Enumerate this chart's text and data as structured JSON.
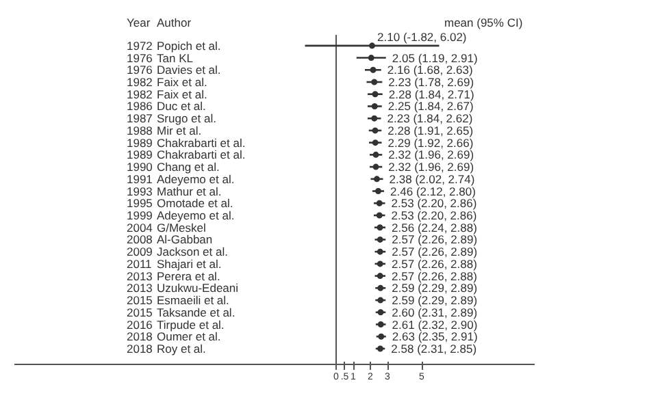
{
  "chart_data": {
    "type": "scatter",
    "orientation": "horizontal",
    "ylabel": "Author",
    "categories": [
      "Popich et al.",
      "Tan KL",
      "Davies et al.",
      "Faix et al.",
      "Faix et al.",
      "Duc et al.",
      "Srugo et al.",
      "Mir et al.",
      "Chakrabarti et al.",
      "Chakrabarti et al.",
      "Chang et al.",
      "Adeyemo et al.",
      "Mathur et al.",
      "Omotade et al.",
      "Adeyemo et al.",
      "G/Meskel",
      "Al-Gabban",
      "Jackson et al.",
      "Shajari et al.",
      "Perera et al.",
      "Uzukwu-Edeani",
      "Esmaeili et al.",
      "Taksande et al.",
      "Tirpude et al.",
      "Oumer et al.",
      "Roy et al."
    ],
    "values": [
      2.1,
      2.05,
      2.16,
      2.23,
      2.28,
      2.25,
      2.23,
      2.28,
      2.29,
      2.32,
      2.32,
      2.38,
      2.46,
      2.53,
      2.53,
      2.56,
      2.57,
      2.57,
      2.57,
      2.57,
      2.59,
      2.59,
      2.6,
      2.61,
      2.63,
      2.58
    ],
    "errors": [
      [
        -1.82,
        6.02
      ],
      [
        1.19,
        2.91
      ],
      [
        1.68,
        2.63
      ],
      [
        1.78,
        2.69
      ],
      [
        1.84,
        2.71
      ],
      [
        1.84,
        2.67
      ],
      [
        1.84,
        2.62
      ],
      [
        1.91,
        2.65
      ],
      [
        1.92,
        2.66
      ],
      [
        1.96,
        2.69
      ],
      [
        1.96,
        2.69
      ],
      [
        2.02,
        2.74
      ],
      [
        2.12,
        2.8
      ],
      [
        2.2,
        2.86
      ],
      [
        2.2,
        2.86
      ],
      [
        2.24,
        2.88
      ],
      [
        2.26,
        2.89
      ],
      [
        2.26,
        2.89
      ],
      [
        2.26,
        2.88
      ],
      [
        2.26,
        2.88
      ],
      [
        2.29,
        2.89
      ],
      [
        2.29,
        2.89
      ],
      [
        2.31,
        2.89
      ],
      [
        2.32,
        2.9
      ],
      [
        2.35,
        2.91
      ],
      [
        2.31,
        2.85
      ]
    ],
    "value_labels": [
      "2.10 (-1.82, 6.02)",
      "2.05 (1.19, 2.91)",
      "2.16 (1.68, 2.63)",
      "2.23 (1.78, 2.69)",
      "2.28 (1.84, 2.71)",
      "2.25 (1.84, 2.67)",
      "2.23 (1.84, 2.62)",
      "2.28 (1.91, 2.65)",
      "2.29 (1.92, 2.66)",
      "2.32 (1.96, 2.69)",
      "2.32 (1.96, 2.69)",
      "2.38 (2.02, 2.74)",
      "2.46 (2.12, 2.80)",
      "2.53 (2.20, 2.86)",
      "2.53 (2.20, 2.86)",
      "2.56 (2.24, 2.88)",
      "2.57 (2.26, 2.89)",
      "2.57 (2.26, 2.89)",
      "2.57 (2.26, 2.88)",
      "2.57 (2.26, 2.88)",
      "2.59 (2.29, 2.89)",
      "2.59 (2.29, 2.89)",
      "2.60 (2.31, 2.89)",
      "2.61 (2.32, 2.90)",
      "2.63 (2.35, 2.91)",
      "2.58 (2.31, 2.85)"
    ],
    "color": "#333333",
    "marker": "circle",
    "xlim": [
      -18.8,
      11.6
    ],
    "xticks": [
      {
        "value": 0,
        "label": "0"
      },
      {
        "value": 0.5,
        "label": ".5"
      },
      {
        "value": 1,
        "label": "1"
      },
      {
        "value": 2,
        "label": "2"
      },
      {
        "value": 3,
        "label": "3"
      },
      {
        "value": 5,
        "label": "5"
      }
    ],
    "ref_lines": [
      {
        "axis": "x",
        "value": 0,
        "color": "#555555"
      }
    ],
    "annotations": [
      "Year",
      "mean (95% CI)",
      "1972",
      "1976",
      "1976",
      "1982",
      "1982",
      "1986",
      "1987",
      "1988",
      "1989",
      "1989",
      "1990",
      "1991",
      "1993",
      "1995",
      "1999",
      "2004",
      "2008",
      "2009",
      "2011",
      "2013",
      "2013",
      "2015",
      "2015",
      "2016",
      "2018",
      "2018"
    ]
  }
}
